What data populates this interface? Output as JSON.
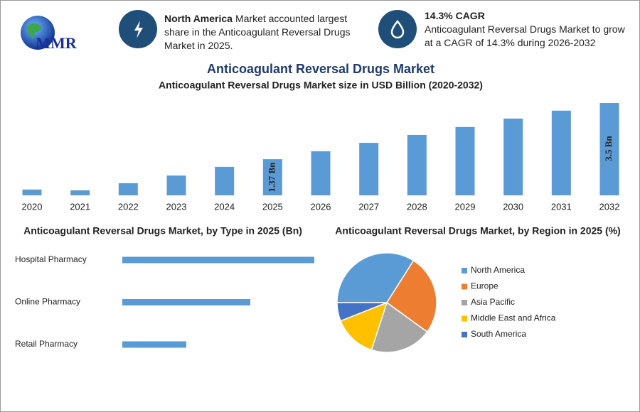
{
  "header": {
    "logo": "MMR",
    "info": [
      {
        "highlight": "North America",
        "text": "Market accounted largest share in the Anticoagulant Reversal Drugs Market in 2025."
      },
      {
        "highlight": "14.3% CAGR",
        "text": "Anticoagulant Reversal Drugs Market to grow at a CAGR of 14.3% during 2026-2032"
      }
    ]
  },
  "chart_data": [
    {
      "type": "bar",
      "title": "Anticoagulant Reversal Drugs Market",
      "subtitle": "Anticoagulant Reversal Drugs Market size in USD Billion (2020-2032)",
      "categories": [
        "2020",
        "2021",
        "2022",
        "2023",
        "2024",
        "2025",
        "2026",
        "2027",
        "2028",
        "2029",
        "2030",
        "2031",
        "2032"
      ],
      "values": [
        0.22,
        0.19,
        0.46,
        0.75,
        1.08,
        1.37,
        1.67,
        1.99,
        2.29,
        2.59,
        2.91,
        3.21,
        3.5
      ],
      "value_labels": [
        null,
        null,
        null,
        null,
        null,
        "1.37 Bn",
        null,
        null,
        null,
        null,
        null,
        null,
        "3.5 Bn"
      ],
      "color": "#5b9bd5"
    },
    {
      "type": "hbar",
      "title": "Anticoagulant Reversal Drugs Market, by Type in 2025 (Bn)",
      "categories": [
        "Hospital Pharmacy",
        "Online Pharmacy",
        "Retail Pharmacy"
      ],
      "values": [
        0.69,
        0.46,
        0.23
      ],
      "color": "#5b9bd5"
    },
    {
      "type": "pie",
      "title": "Anticoagulant Reversal Drugs Market, by Region in 2025 (%)",
      "categories": [
        "North America",
        "Europe",
        "Asia Pacific",
        "Middle East and Africa",
        "South America"
      ],
      "values": [
        34,
        26,
        20,
        14,
        6
      ],
      "colors": [
        "#5b9bd5",
        "#ed7d31",
        "#a5a5a5",
        "#ffc000",
        "#4472c4"
      ],
      "legend": "right"
    }
  ]
}
